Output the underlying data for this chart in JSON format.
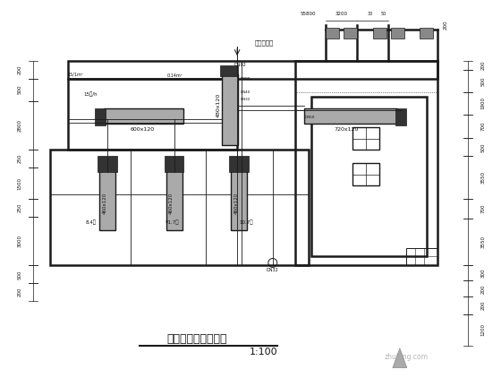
{
  "title": "会所空调及管道平面",
  "scale": "1:100",
  "bg_color": "#ffffff",
  "line_color": "#1a1a1a",
  "fig_width": 5.6,
  "fig_height": 4.22,
  "dpi": 100,
  "annotation_label": "新空调机组",
  "watermark": "zhulong.com",
  "lw_wall": 1.8,
  "lw_duct": 1.0,
  "lw_pipe": 0.6,
  "lw_dim": 0.5
}
